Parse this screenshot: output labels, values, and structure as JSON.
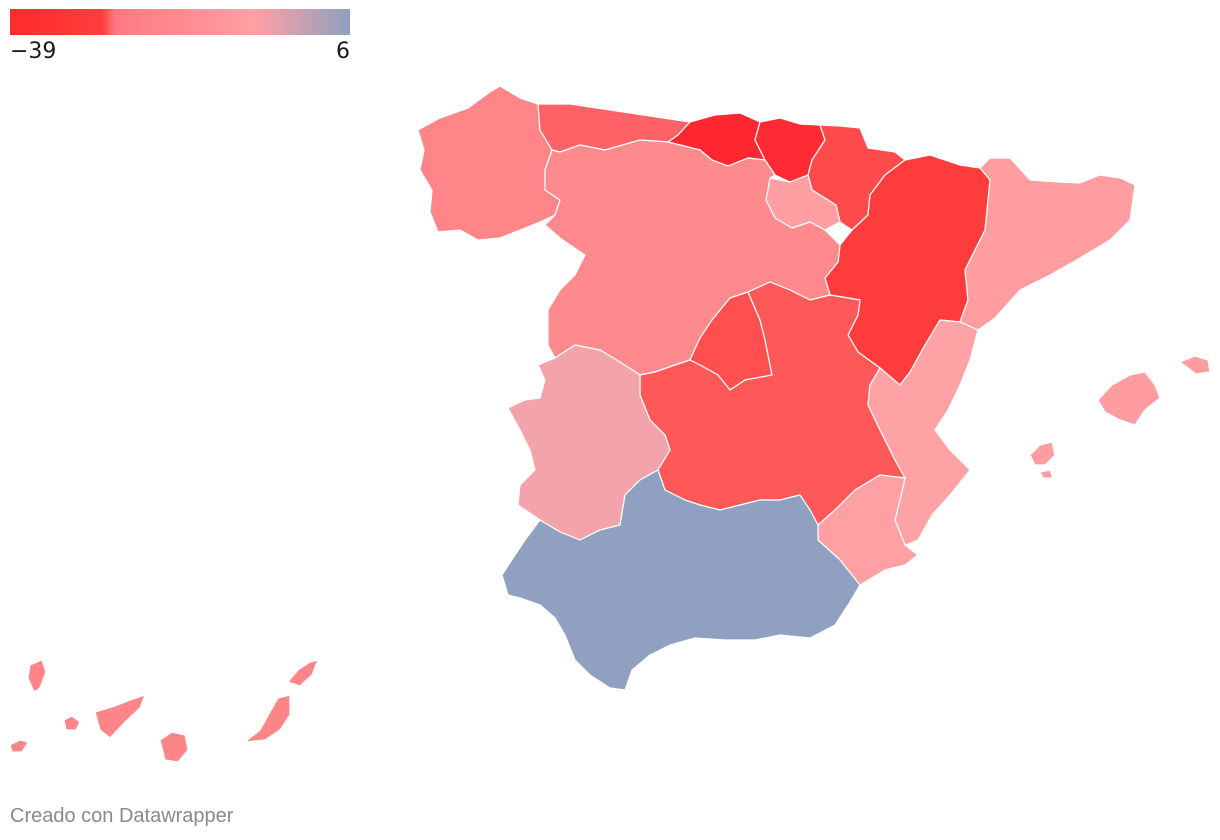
{
  "legend": {
    "min_label": "−39",
    "max_label": "6",
    "min_value": -39,
    "max_value": 6,
    "gradient_colors": [
      "#ff2b2b",
      "#ff3c3c",
      "#ff8186",
      "#ffa0a4",
      "#8fa0c0"
    ]
  },
  "credit": "Creado con Datawrapper",
  "regions": [
    {
      "id": "galicia",
      "color": "#ff8589"
    },
    {
      "id": "asturias",
      "color": "#ff6266"
    },
    {
      "id": "cantabria",
      "color": "#ff2730"
    },
    {
      "id": "pais-vasco",
      "color": "#ff2a33"
    },
    {
      "id": "navarra",
      "color": "#ff4b4b"
    },
    {
      "id": "la-rioja",
      "color": "#ff9fa3"
    },
    {
      "id": "aragon",
      "color": "#ff3c3c"
    },
    {
      "id": "cataluna",
      "color": "#ff9da0"
    },
    {
      "id": "castilla-y-leon",
      "color": "#ff8a8d"
    },
    {
      "id": "madrid",
      "color": "#ff4f4f"
    },
    {
      "id": "castilla-la-mancha",
      "color": "#ff5858"
    },
    {
      "id": "extremadura",
      "color": "#f2a4aa"
    },
    {
      "id": "comunidad-valenciana",
      "color": "#ffa2a6"
    },
    {
      "id": "murcia",
      "color": "#ffa0a4"
    },
    {
      "id": "andalucia",
      "color": "#8fa0c0"
    },
    {
      "id": "baleares",
      "color": "#ff9ca0"
    },
    {
      "id": "canarias",
      "color": "#ff8589"
    }
  ]
}
